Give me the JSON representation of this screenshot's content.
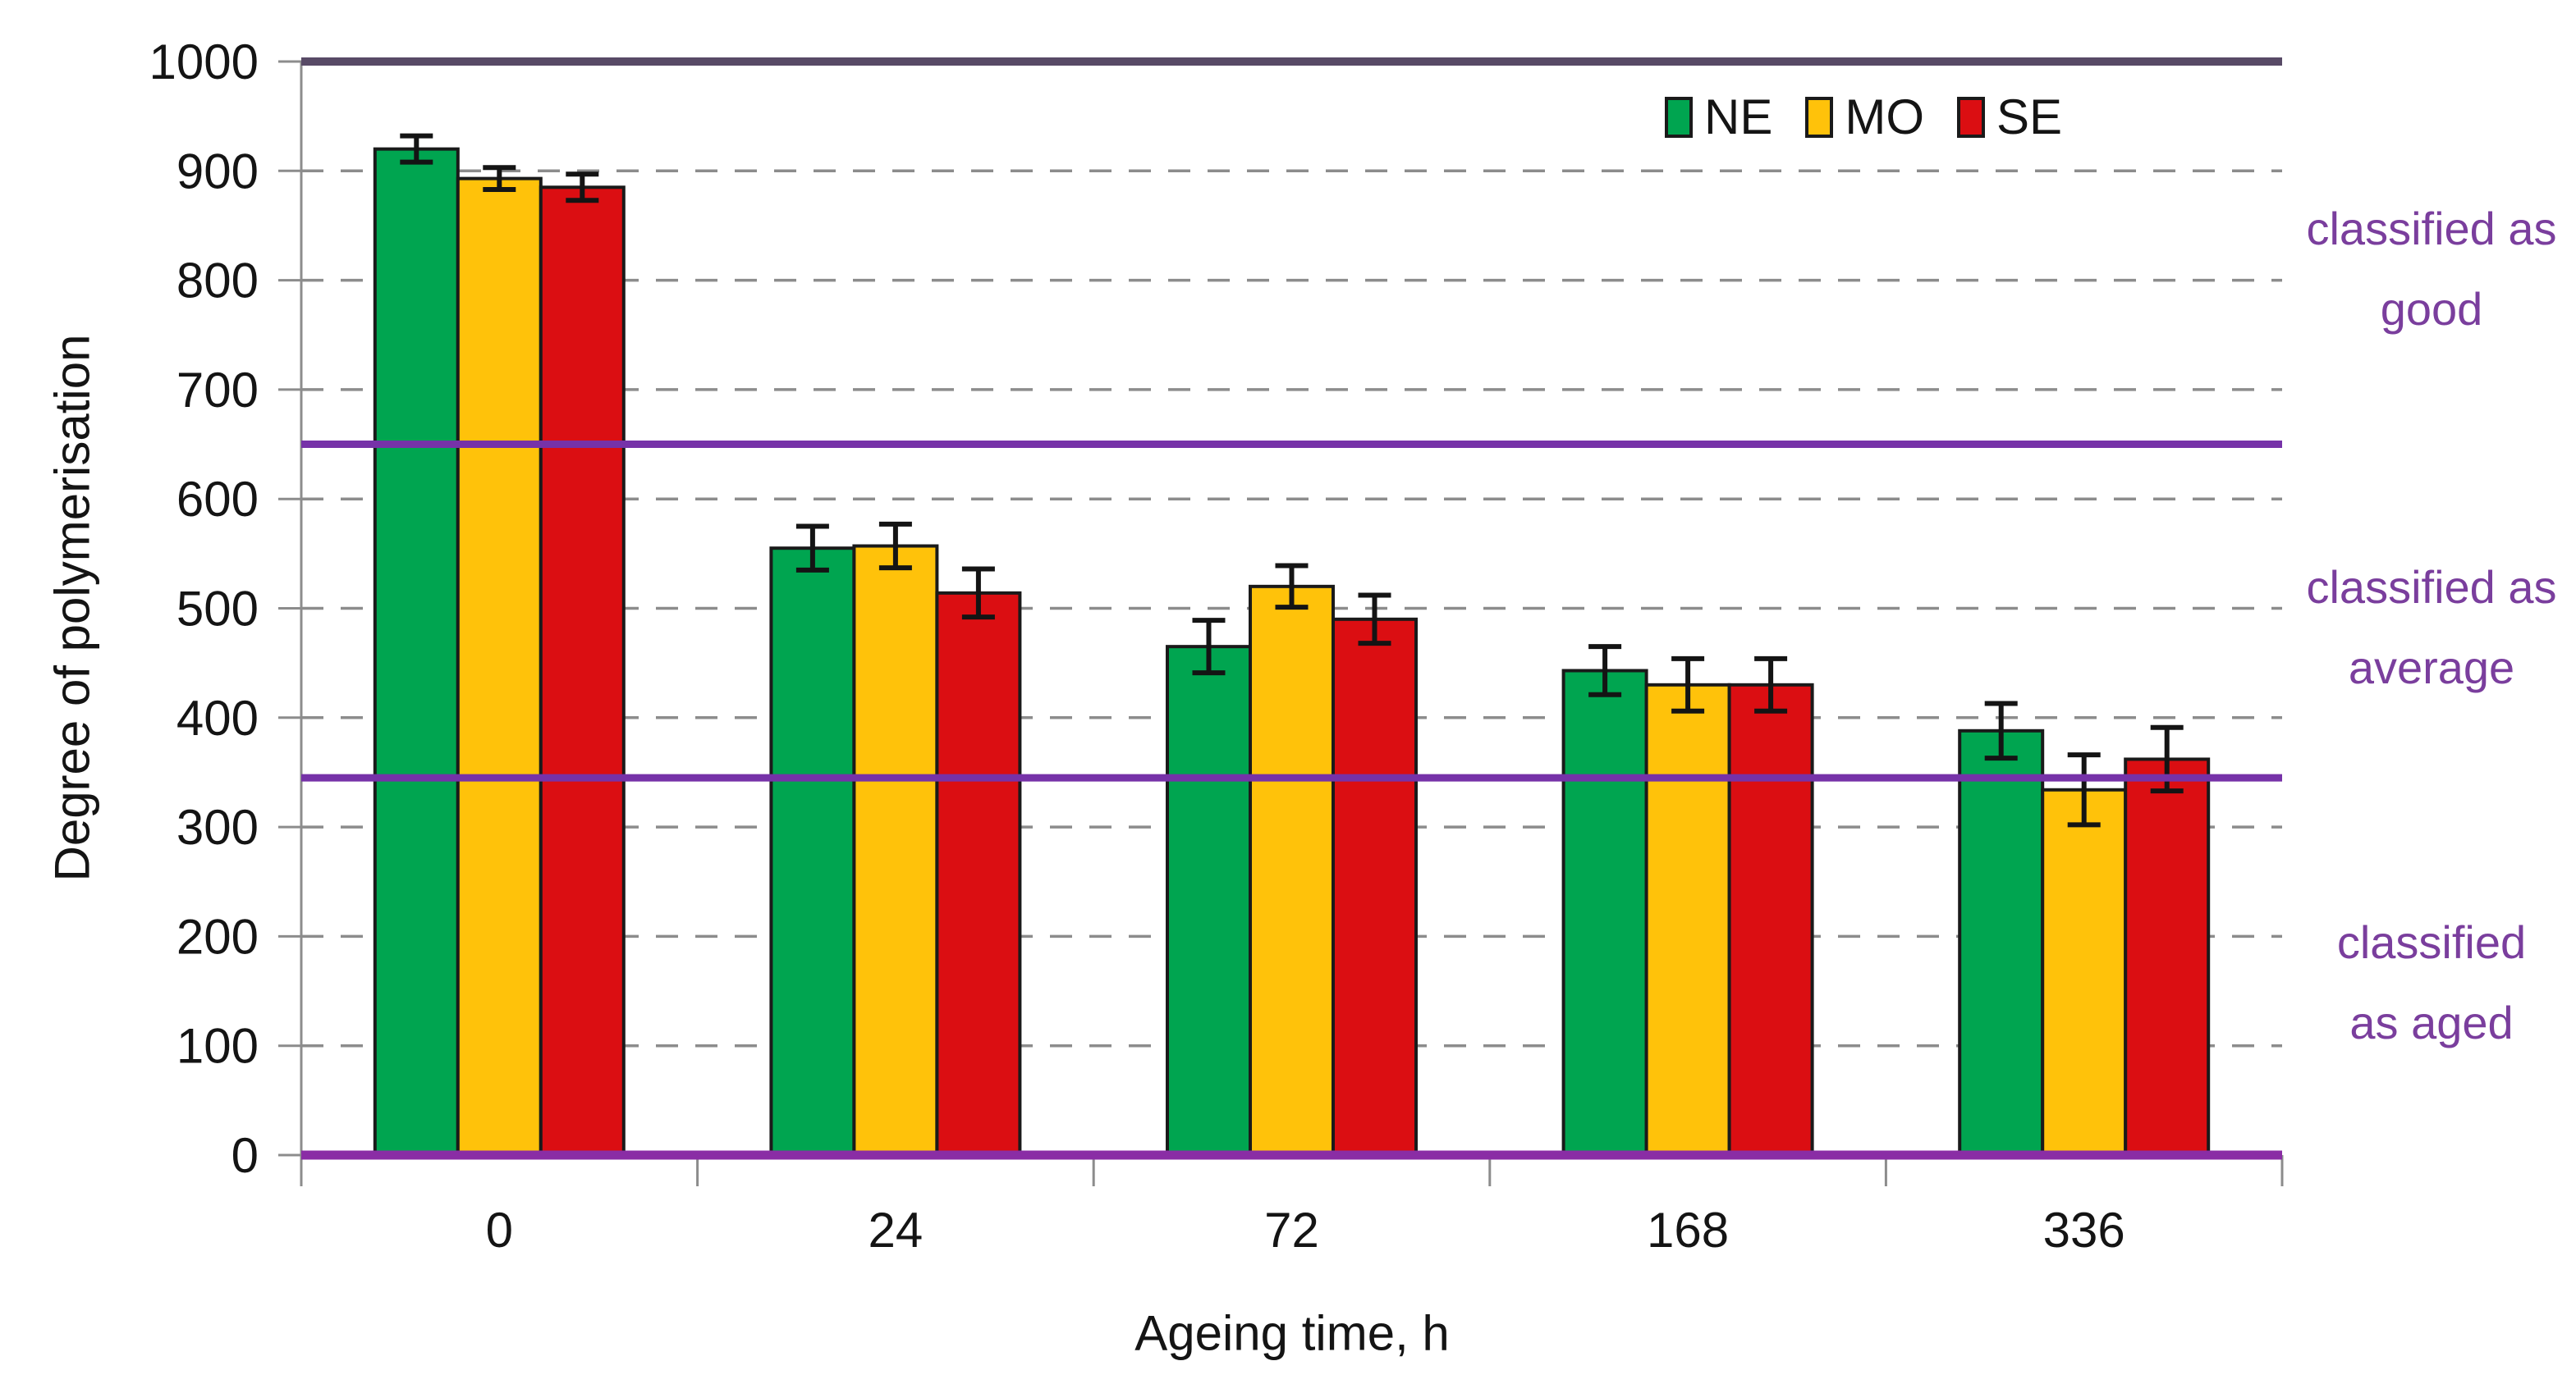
{
  "chart_data": {
    "type": "bar",
    "title": "",
    "xlabel": "Ageing time, h",
    "ylabel": "Degree of polymerisation",
    "categories": [
      "0",
      "24",
      "72",
      "168",
      "336"
    ],
    "series": [
      {
        "name": "NE",
        "color": "#00A550",
        "values": [
          920,
          555,
          465,
          443,
          388
        ],
        "errors": [
          12,
          20,
          24,
          22,
          25
        ]
      },
      {
        "name": "MO",
        "color": "#FFC20A",
        "values": [
          893,
          557,
          520,
          430,
          334
        ],
        "errors": [
          10,
          20,
          19,
          24,
          32
        ]
      },
      {
        "name": "SE",
        "color": "#DB0E12",
        "values": [
          885,
          514,
          490,
          430,
          362
        ],
        "errors": [
          12,
          22,
          22,
          24,
          29
        ]
      }
    ],
    "ylim": [
      0,
      1000
    ],
    "ytick_step": 100,
    "grid": "dashed-horizontal",
    "legend_position": "top-right",
    "reference_lines": [
      {
        "value": 1000,
        "color": "#584A66",
        "thickness": 10
      },
      {
        "value": 650,
        "color": "#7632A8",
        "thickness": 9
      },
      {
        "value": 345,
        "color": "#7632A8",
        "thickness": 9
      },
      {
        "value": 0,
        "color": "#8A2DA5",
        "thickness": 11
      }
    ],
    "zone_annotations": [
      {
        "lines": [
          "classified as",
          "good"
        ],
        "zone": [
          650,
          1000
        ]
      },
      {
        "lines": [
          "classified as",
          "average"
        ],
        "zone": [
          345,
          650
        ]
      },
      {
        "lines": [
          "classified",
          "as aged"
        ],
        "zone": [
          0,
          345
        ]
      }
    ],
    "annotation_color": "#7A3E9D",
    "axis_color": "#8C8C8C",
    "grid_color": "#8C8C8C",
    "bar_outline_color": "#1A1A1A",
    "error_bar_color": "#141414",
    "text_color": "#141414"
  }
}
